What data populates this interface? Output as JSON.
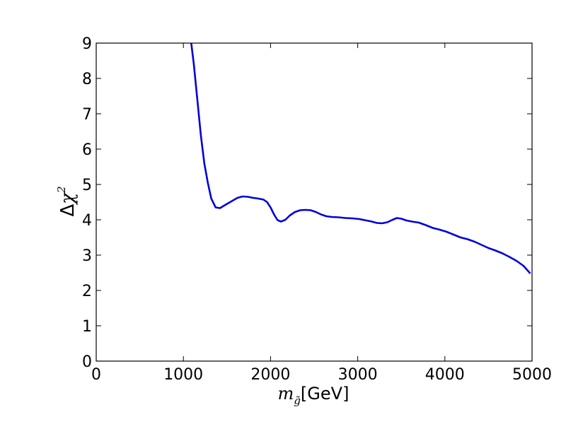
{
  "chart_data": {
    "type": "line",
    "title": "",
    "xlabel": {
      "symbol": "m",
      "subscript": "g̃",
      "unit": "[GeV]"
    },
    "ylabel": {
      "delta": "Δ",
      "chi": "χ",
      "power": "2"
    },
    "xlim": [
      0,
      5000
    ],
    "ylim": [
      0,
      9
    ],
    "xticks": [
      0,
      1000,
      2000,
      3000,
      4000,
      5000
    ],
    "yticks": [
      0,
      1,
      2,
      3,
      4,
      5,
      6,
      7,
      8,
      9
    ],
    "xtick_labels": [
      "0",
      "1000",
      "2000",
      "3000",
      "4000",
      "5000"
    ],
    "ytick_labels": [
      "0",
      "1",
      "2",
      "3",
      "4",
      "5",
      "6",
      "7",
      "8",
      "9"
    ],
    "grid": false,
    "legend": "none",
    "line_color": "#0000dd",
    "series": [
      {
        "x": [
          1090,
          1120,
          1160,
          1200,
          1240,
          1280,
          1320,
          1370,
          1420,
          1480,
          1550,
          1620,
          1680,
          1740,
          1800,
          1860,
          1920,
          1960,
          2000,
          2040,
          2080,
          2120,
          2170,
          2220,
          2280,
          2340,
          2400,
          2460,
          2520,
          2580,
          2640,
          2700,
          2780,
          2860,
          2940,
          3020,
          3100,
          3160,
          3220,
          3280,
          3340,
          3400,
          3450,
          3500,
          3560,
          3620,
          3700,
          3780,
          3860,
          3940,
          4020,
          4100,
          4180,
          4260,
          4340,
          4420,
          4500,
          4580,
          4660,
          4740,
          4820,
          4900,
          4980
        ],
        "y": [
          9.0,
          8.4,
          7.4,
          6.4,
          5.6,
          5.05,
          4.6,
          4.35,
          4.33,
          4.42,
          4.52,
          4.62,
          4.66,
          4.65,
          4.62,
          4.6,
          4.57,
          4.5,
          4.35,
          4.15,
          3.99,
          3.95,
          4.0,
          4.12,
          4.22,
          4.27,
          4.28,
          4.27,
          4.22,
          4.15,
          4.1,
          4.08,
          4.07,
          4.05,
          4.04,
          4.02,
          3.98,
          3.95,
          3.91,
          3.9,
          3.93,
          4.0,
          4.05,
          4.03,
          3.98,
          3.95,
          3.92,
          3.85,
          3.77,
          3.72,
          3.66,
          3.58,
          3.5,
          3.45,
          3.38,
          3.29,
          3.2,
          3.13,
          3.05,
          2.95,
          2.84,
          2.7,
          2.48
        ]
      }
    ]
  }
}
